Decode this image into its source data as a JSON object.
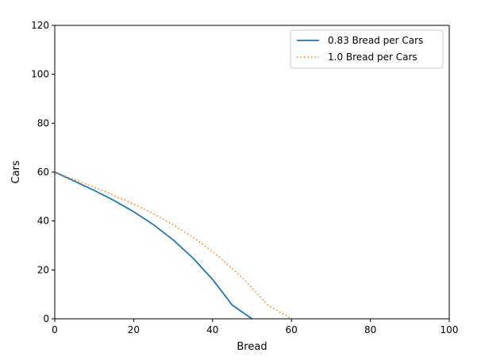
{
  "chart_data": {
    "type": "line",
    "title": "",
    "xlabel": "Bread",
    "ylabel": "Cars",
    "xlim": [
      0,
      100
    ],
    "ylim": [
      0,
      120
    ],
    "xticks": [
      0,
      20,
      40,
      60,
      80,
      100
    ],
    "yticks": [
      0,
      20,
      40,
      60,
      80,
      100,
      120
    ],
    "grid": false,
    "legend_position": "upper-right",
    "series": [
      {
        "name": "0.83 Bread per Cars",
        "style": "solid",
        "color": "#1f77b4",
        "x": [
          0,
          5,
          10,
          15,
          20,
          25,
          30,
          35,
          40,
          45,
          50
        ],
        "y": [
          60,
          56.3,
          52.5,
          48.4,
          43.8,
          38.5,
          32.3,
          24.9,
          16.1,
          5.6,
          0
        ]
      },
      {
        "name": "1.0 Bread per Cars",
        "style": "dotted",
        "color": "#ff7f0e",
        "x": [
          0,
          6,
          12,
          18,
          24,
          30,
          36,
          42,
          48,
          54,
          60
        ],
        "y": [
          60,
          56.3,
          52.5,
          48.4,
          43.8,
          38.5,
          32.3,
          24.9,
          16.1,
          5.6,
          0
        ]
      }
    ]
  }
}
